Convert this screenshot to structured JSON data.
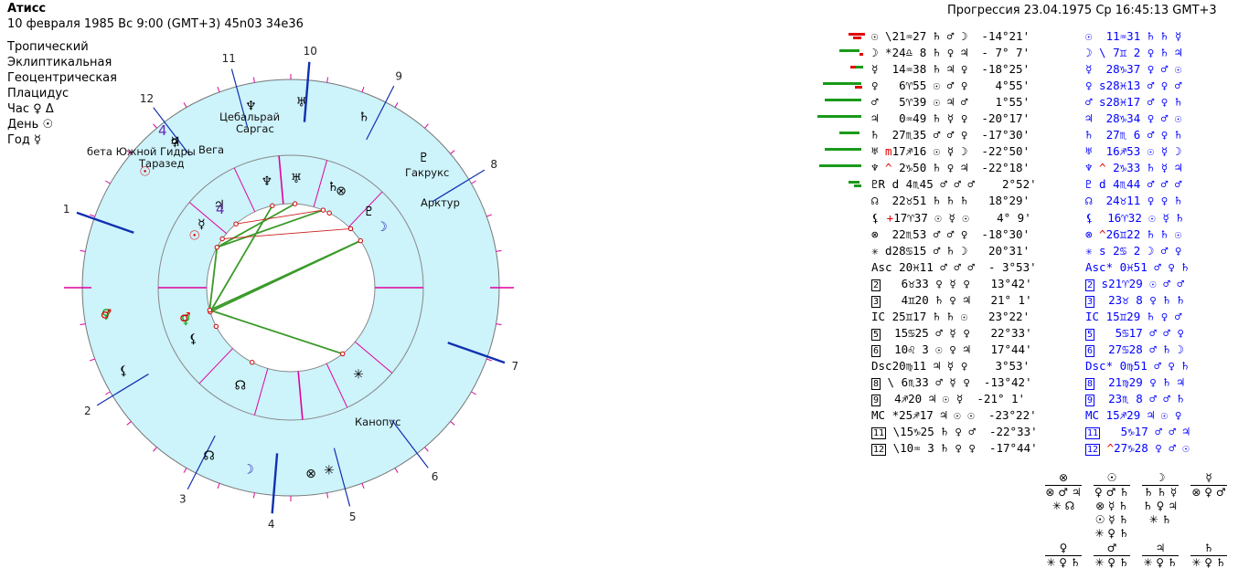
{
  "header": {
    "title": "Атисс",
    "birth_line": "10 февраля 1985  Вс   9:00 (GMT+3) 45n03  34e36",
    "progression_line": "Прогрессия 23.04.1975  Ср 16:45:13 GMT+3"
  },
  "settings": [
    "Тропический",
    "Эклиптикальная",
    "Геоцентрическая",
    "Плацидус"
  ],
  "rulers": [
    {
      "label": "Час",
      "value": "♀ Δ"
    },
    {
      "label": "День",
      "value": "☉"
    },
    {
      "label": "Год",
      "value": "☿"
    }
  ],
  "chart": {
    "house_numbers_outer": [
      "1",
      "2",
      "3",
      "4",
      "5",
      "6",
      "7",
      "8",
      "9",
      "10",
      "11",
      "12"
    ],
    "zodiac_signs": [
      "♈",
      "♉",
      "♊",
      "♋",
      "♌",
      "♍",
      "♎",
      "♏",
      "♐",
      "♑",
      "♒",
      "♓"
    ],
    "zodiac_colors": [
      "#f9c7c7",
      "#fbd7b7",
      "#fbf7b7",
      "#d2f7b7",
      "#b7f1b7",
      "#b7dfc7",
      "#b7eef7",
      "#b7d7f7",
      "#c7c7f7",
      "#d7b7f7",
      "#f7b7f3",
      "#f7b7d7"
    ],
    "fixed_stars": [
      "Цебальрай",
      "Саргас",
      "Вега",
      "бета Южной Гидры",
      "Таразед",
      "Гакрукс",
      "Арктур",
      "Канопус"
    ],
    "inner_house_label": "4",
    "outer_house_label": "4"
  },
  "natal_table": [
    {
      "p": "☉",
      "pre": " \\",
      "deg": "21",
      "sign": "♒",
      "min": "27",
      "a": "♄ ♂ ☽",
      "lat": "-14°21'"
    },
    {
      "p": "☽",
      "pre": " *",
      "deg": "24",
      "sign": "♎",
      "min": " 8",
      "a": "♄ ♀ ♃",
      "lat": "- 7° 7'"
    },
    {
      "p": "☿",
      "pre": "  ",
      "deg": "14",
      "sign": "♒",
      "min": "38",
      "a": "♄ ♃ ♀",
      "lat": "-18°25'"
    },
    {
      "p": "♀",
      "pre": "  ",
      "deg": " 6",
      "sign": "♈",
      "min": "55",
      "a": "☉ ♂ ♀",
      "lat": "  4°55'"
    },
    {
      "p": "♂",
      "pre": "  ",
      "deg": " 5",
      "sign": "♈",
      "min": "39",
      "a": "☉ ♃ ♂",
      "lat": "  1°55'"
    },
    {
      "p": "♃",
      "pre": "  ",
      "deg": " 0",
      "sign": "♒",
      "min": "49",
      "a": "♄ ☿ ♀",
      "lat": "-20°17'"
    },
    {
      "p": "♄",
      "pre": "  ",
      "deg": "27",
      "sign": "♏",
      "min": "35",
      "a": "♂ ♂ ♀",
      "lat": "-17°30'"
    },
    {
      "p": "♅",
      "pre": " m",
      "deg": "17",
      "sign": "♐",
      "min": "16",
      "a": "☉ ☿ ☽",
      "lat": "-22°50'"
    },
    {
      "p": "♆",
      "pre": " ^",
      "deg": " 2",
      "sign": "♑",
      "min": "50",
      "a": "♄ ♀ ♃",
      "lat": "-22°18'"
    },
    {
      "p": "♇",
      "pre": "R d",
      "deg": " 4",
      "sign": "♏",
      "min": "45",
      "a": "♂ ♂ ♂",
      "lat": "  2°52'"
    },
    {
      "p": "☊",
      "pre": "  ",
      "deg": "22",
      "sign": "♉",
      "min": "51",
      "a": "♄ ♄ ♄",
      "lat": " 18°29'"
    },
    {
      "p": "⚸",
      "pre": " +",
      "deg": "17",
      "sign": "♈",
      "min": "37",
      "a": "☉ ☿ ☉",
      "lat": "  4° 9'"
    },
    {
      "p": "⊗",
      "pre": "  ",
      "deg": "22",
      "sign": "♏",
      "min": "53",
      "a": "♂ ♂ ♀",
      "lat": "-18°30'"
    },
    {
      "p": "✳",
      "pre": " d",
      "deg": "28",
      "sign": "♋",
      "min": "15",
      "a": "♂ ♄ ☽",
      "lat": " 20°31'"
    },
    {
      "p": "Asc",
      "pre": " ",
      "deg": "20",
      "sign": "♓",
      "min": "11",
      "a": "♂ ♂ ♂",
      "lat": "- 3°53'"
    },
    {
      "p": "2",
      "pre": "  ",
      "deg": " 6",
      "sign": "♉",
      "min": "33",
      "a": "♀ ☿ ♀",
      "lat": " 13°42'"
    },
    {
      "p": "3",
      "pre": "  ",
      "deg": " 4",
      "sign": "♊",
      "min": "20",
      "a": "♄ ♀ ♃",
      "lat": " 21° 1'"
    },
    {
      "p": "IC",
      "pre": " ",
      "deg": "25",
      "sign": "♊",
      "min": "17",
      "a": "♄ ♄ ☉",
      "lat": " 23°22'"
    },
    {
      "p": "5",
      "pre": "  ",
      "deg": "15",
      "sign": "♋",
      "min": "25",
      "a": "♂ ☿ ♀",
      "lat": " 22°33'"
    },
    {
      "p": "6",
      "pre": "  ",
      "deg": "10",
      "sign": "♌",
      "min": " 3",
      "a": "☉ ♀ ♃",
      "lat": " 17°44'"
    },
    {
      "p": "Dsc",
      "pre": "",
      "deg": "20",
      "sign": "♍",
      "min": "11",
      "a": "♃ ☿ ♀",
      "lat": "  3°53'"
    },
    {
      "p": "8",
      "pre": " \\",
      "deg": " 6",
      "sign": "♏",
      "min": "33",
      "a": "♂ ☿ ♀",
      "lat": "-13°42'"
    },
    {
      "p": "9",
      "pre": " ",
      "deg": " 4",
      "sign": "♐",
      "min": "20",
      "a": "♃ ☉ ☿",
      "lat": "-21° 1'"
    },
    {
      "p": "MC",
      "pre": " *",
      "deg": "25",
      "sign": "♐",
      "min": "17",
      "a": "♃ ☉ ☉",
      "lat": "-23°22'"
    },
    {
      "p": "11",
      "pre": " \\",
      "deg": "15",
      "sign": "♑",
      "min": "25",
      "a": "♄ ♀ ♂",
      "lat": "-22°33'"
    },
    {
      "p": "12",
      "pre": " \\",
      "deg": "10",
      "sign": "♒",
      "min": " 3",
      "a": "♄ ♀ ♀",
      "lat": "-17°44'"
    }
  ],
  "progression_table": [
    {
      "p": "☉",
      "pre": "  ",
      "deg": "11",
      "sign": "♒",
      "min": "31",
      "a": "♄ ♄ ☿"
    },
    {
      "p": "☽",
      "pre": " \\",
      "deg": " 7",
      "sign": "♊",
      "min": " 2",
      "a": "♀ ♄ ♃"
    },
    {
      "p": "☿",
      "pre": "  ",
      "deg": "28",
      "sign": "♑",
      "min": "37",
      "a": "♀ ♂ ☉"
    },
    {
      "p": "♀",
      "pre": " s",
      "deg": "28",
      "sign": "♓",
      "min": "13",
      "a": "♂ ♀ ♂"
    },
    {
      "p": "♂",
      "pre": " s",
      "deg": "28",
      "sign": "♓",
      "min": "17",
      "a": "♂ ♀ ♄"
    },
    {
      "p": "♃",
      "pre": "  ",
      "deg": "28",
      "sign": "♑",
      "min": "34",
      "a": "♀ ♂ ☉"
    },
    {
      "p": "♄",
      "pre": "  ",
      "deg": "27",
      "sign": "♏",
      "min": " 6",
      "a": "♂ ♀ ♄"
    },
    {
      "p": "♅",
      "pre": "  ",
      "deg": "16",
      "sign": "♐",
      "min": "53",
      "a": "☉ ☿ ☽"
    },
    {
      "p": "♆",
      "pre": " ^",
      "deg": " 2",
      "sign": "♑",
      "min": "33",
      "a": "♄ ☿ ♃"
    },
    {
      "p": "♇",
      "pre": " d",
      "deg": " 4",
      "sign": "♏",
      "min": "44",
      "a": "♂ ♂ ♂"
    },
    {
      "p": "☊",
      "pre": "  ",
      "deg": "24",
      "sign": "♉",
      "min": "11",
      "a": "♀ ♀ ♄"
    },
    {
      "p": "⚸",
      "pre": "  ",
      "deg": "16",
      "sign": "♈",
      "min": "32",
      "a": "☉ ☿ ♄"
    },
    {
      "p": "⊗",
      "pre": " ^",
      "deg": "26",
      "sign": "♊",
      "min": "22",
      "a": "♄ ♄ ☉"
    },
    {
      "p": "✳",
      "pre": " s",
      "deg": " 2",
      "sign": "♋",
      "min": " 2",
      "a": "☽ ♂ ♀"
    },
    {
      "p": "Asc",
      "pre": "*",
      "deg": " 0",
      "sign": "♓",
      "min": "51",
      "a": "♂ ♀ ♄"
    },
    {
      "p": "2",
      "pre": " s",
      "deg": "21",
      "sign": "♈",
      "min": "29",
      "a": "☉ ♂ ♂"
    },
    {
      "p": "3",
      "pre": "  ",
      "deg": "23",
      "sign": "♉",
      "min": " 8",
      "a": "♀ ♄ ♄"
    },
    {
      "p": "IC",
      "pre": " ",
      "deg": "15",
      "sign": "♊",
      "min": "29",
      "a": "♄ ♀ ♂"
    },
    {
      "p": "5",
      "pre": "  ",
      "deg": " 5",
      "sign": "♋",
      "min": "17",
      "a": "♂ ♂ ♀"
    },
    {
      "p": "6",
      "pre": "  ",
      "deg": "27",
      "sign": "♋",
      "min": "28",
      "a": "♂ ♄ ☽"
    },
    {
      "p": "Dsc",
      "pre": "*",
      "deg": " 0",
      "sign": "♍",
      "min": "51",
      "a": "♂ ♀ ♄"
    },
    {
      "p": "8",
      "pre": "  ",
      "deg": "21",
      "sign": "♍",
      "min": "29",
      "a": "♀ ♄ ♃"
    },
    {
      "p": "9",
      "pre": "  ",
      "deg": "23",
      "sign": "♏",
      "min": " 8",
      "a": "♂ ♂ ♄"
    },
    {
      "p": "MC",
      "pre": " ",
      "deg": "15",
      "sign": "♐",
      "min": "29",
      "a": "♃ ☉ ♀"
    },
    {
      "p": "11",
      "pre": "  ",
      "deg": " 5",
      "sign": "♑",
      "min": "17",
      "a": "♂ ♂ ♃"
    },
    {
      "p": "12",
      "pre": " ^",
      "deg": "27",
      "sign": "♑",
      "min": "28",
      "a": "♀ ♂ ☉"
    }
  ],
  "bottom_glyph_groups": [
    {
      "top": "⊗",
      "lines": [
        "⊗ ♂ ♃",
        "✳ ☊"
      ]
    },
    {
      "top": "☉",
      "lines": [
        "♀ ♂ ♄",
        "⊗ ☿ ♄",
        "☉ ☿ ♄",
        "✳ ♀ ♄"
      ]
    },
    {
      "top": "☽",
      "lines": [
        "♄ ♄ ☿",
        "♄ ♀ ♃",
        "✳ ♄"
      ]
    },
    {
      "top": "☿",
      "lines": [
        "⊗ ♀ ♂"
      ]
    },
    {
      "top": "♀",
      "lines": [
        "✳ ♀ ♄"
      ]
    },
    {
      "top": "♂",
      "lines": [
        "✳ ♀ ♄"
      ]
    },
    {
      "top": "♃",
      "lines": [
        "✳ ♀ ♄"
      ]
    },
    {
      "top": "♄",
      "lines": [
        "✳ ♀ ♄"
      ]
    }
  ]
}
